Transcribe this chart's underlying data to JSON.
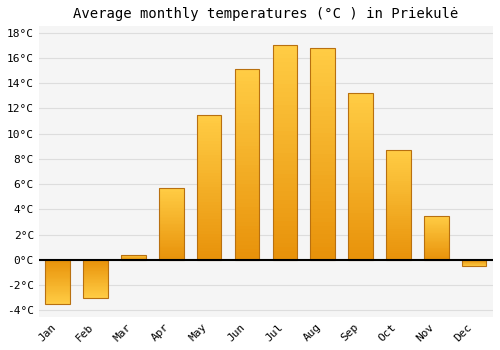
{
  "months": [
    "Jan",
    "Feb",
    "Mar",
    "Apr",
    "May",
    "Jun",
    "Jul",
    "Aug",
    "Sep",
    "Oct",
    "Nov",
    "Dec"
  ],
  "values": [
    -3.5,
    -3.0,
    0.4,
    5.7,
    11.5,
    15.1,
    17.0,
    16.8,
    13.2,
    8.7,
    3.5,
    -0.5
  ],
  "bar_color_bottom": "#E8920A",
  "bar_color_top": "#FFCC44",
  "bar_edge_color": "#B87010",
  "background_color": "#FFFFFF",
  "plot_area_color": "#F5F5F5",
  "title": "Average monthly temperatures (°C ) in Priekulė",
  "ylim": [
    -4.5,
    18.5
  ],
  "yticks": [
    -4,
    -2,
    0,
    2,
    4,
    6,
    8,
    10,
    12,
    14,
    16,
    18
  ],
  "ytick_labels": [
    "-4°C",
    "-2°C",
    "0°C",
    "2°C",
    "4°C",
    "6°C",
    "8°C",
    "10°C",
    "12°C",
    "14°C",
    "16°C",
    "18°C"
  ],
  "grid_color": "#DDDDDD",
  "zero_line_color": "#000000",
  "title_fontsize": 10,
  "tick_fontsize": 8,
  "bar_width": 0.65,
  "n_gradient_steps": 50
}
